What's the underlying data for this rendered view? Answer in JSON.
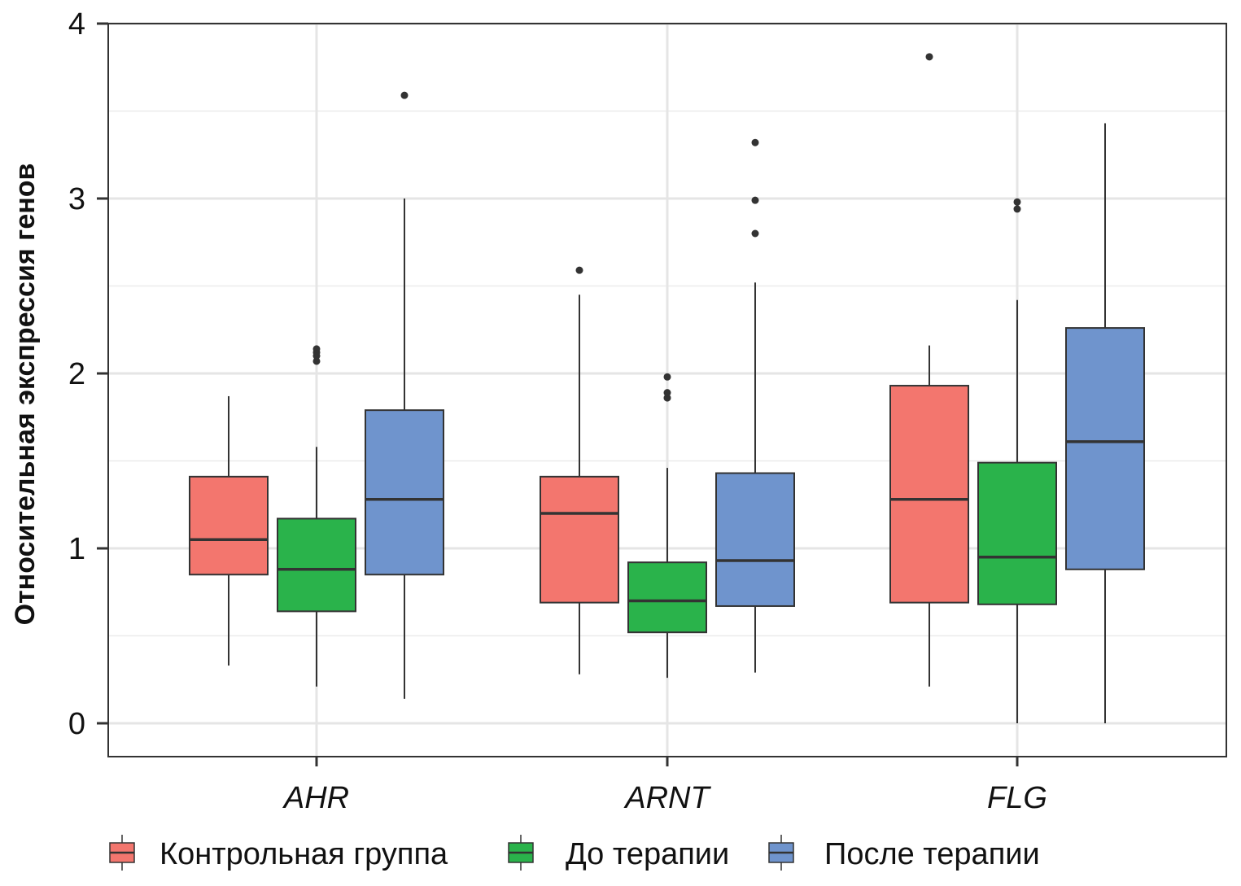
{
  "chart_data": {
    "type": "box",
    "title": "",
    "xlabel": "",
    "ylabel": "Относительная экспрессия генов",
    "ylim": [
      -0.19,
      4
    ],
    "yticks": [
      0,
      1,
      2,
      3,
      4
    ],
    "ytick_labels": [
      "0",
      "1",
      "2",
      "3",
      "4"
    ],
    "grid": true,
    "legend_position": "bottom",
    "categories": [
      "AHR",
      "ARNT",
      "FLG"
    ],
    "series": [
      {
        "name": "Контрольная группа",
        "color": "#F3766E",
        "boxes": [
          {
            "category": "AHR",
            "whisker_low": 0.33,
            "q1": 0.85,
            "median": 1.05,
            "q3": 1.41,
            "whisker_high": 1.87,
            "outliers": []
          },
          {
            "category": "ARNT",
            "whisker_low": 0.28,
            "q1": 0.69,
            "median": 1.2,
            "q3": 1.41,
            "whisker_high": 2.45,
            "outliers": [
              2.59
            ]
          },
          {
            "category": "FLG",
            "whisker_low": 0.21,
            "q1": 0.69,
            "median": 1.28,
            "q3": 1.93,
            "whisker_high": 2.16,
            "outliers": [
              3.81
            ]
          }
        ]
      },
      {
        "name": "До терапии",
        "color": "#2AB34B",
        "boxes": [
          {
            "category": "AHR",
            "whisker_low": 0.21,
            "q1": 0.64,
            "median": 0.88,
            "q3": 1.17,
            "whisker_high": 1.58,
            "outliers": [
              2.07,
              2.1,
              2.12,
              2.14
            ]
          },
          {
            "category": "ARNT",
            "whisker_low": 0.26,
            "q1": 0.52,
            "median": 0.7,
            "q3": 0.92,
            "whisker_high": 1.46,
            "outliers": [
              1.86,
              1.89,
              1.98
            ]
          },
          {
            "category": "FLG",
            "whisker_low": 0.0,
            "q1": 0.68,
            "median": 0.95,
            "q3": 1.49,
            "whisker_high": 2.42,
            "outliers": [
              2.94,
              2.98
            ]
          }
        ]
      },
      {
        "name": "После терапии",
        "color": "#6F94CD",
        "boxes": [
          {
            "category": "AHR",
            "whisker_low": 0.14,
            "q1": 0.85,
            "median": 1.28,
            "q3": 1.79,
            "whisker_high": 3.0,
            "outliers": [
              3.59
            ]
          },
          {
            "category": "ARNT",
            "whisker_low": 0.29,
            "q1": 0.67,
            "median": 0.93,
            "q3": 1.43,
            "whisker_high": 2.52,
            "outliers": [
              2.8,
              2.99,
              3.32
            ]
          },
          {
            "category": "FLG",
            "whisker_low": 0.0,
            "q1": 0.88,
            "median": 1.61,
            "q3": 2.26,
            "whisker_high": 3.43,
            "outliers": []
          }
        ]
      }
    ]
  }
}
